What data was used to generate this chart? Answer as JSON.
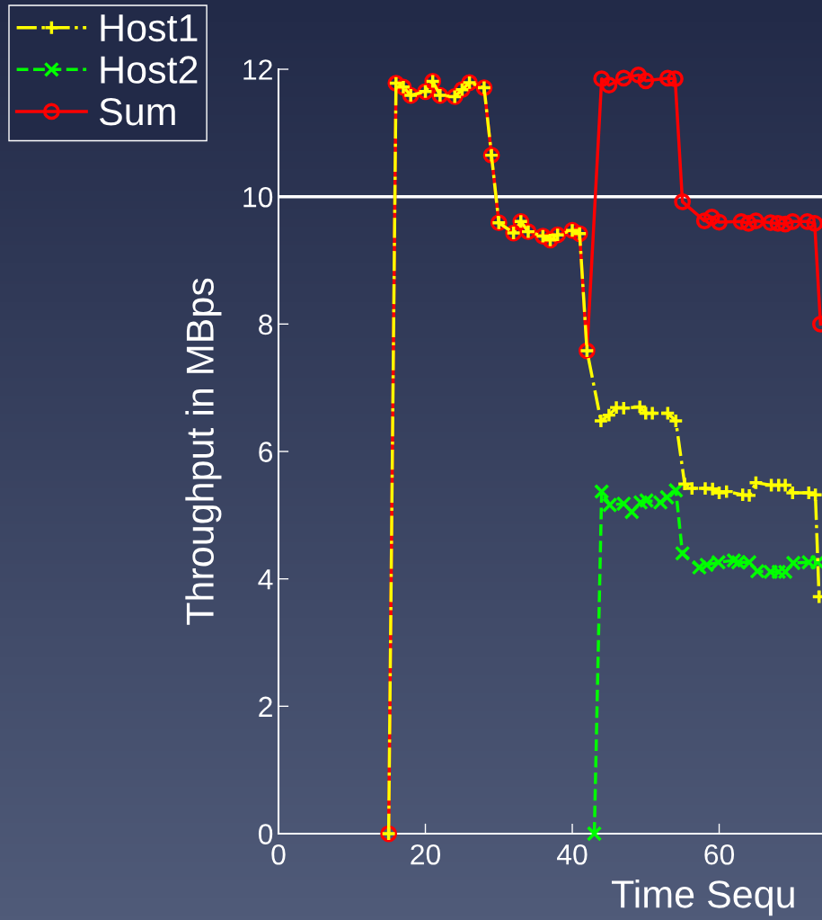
{
  "chart_data": {
    "type": "line",
    "ylabel": "Throughput in MBps",
    "xlabel": "Time Sequ",
    "xlim": [
      0,
      74
    ],
    "ylim": [
      0,
      12
    ],
    "xticks": [
      0,
      20,
      40,
      60
    ],
    "yticks": [
      0,
      2,
      4,
      6,
      8,
      10,
      12
    ],
    "grid": false,
    "legend": "top left",
    "ref_lines": [
      {
        "axis": "y",
        "value": 10,
        "color": "#ffffff",
        "line_style": "solid"
      }
    ],
    "series": [
      {
        "name": "Host1",
        "color": "#ffff00",
        "marker": "plus",
        "line_style": "dashdot",
        "x": [
          15,
          16,
          17,
          18,
          20,
          21,
          22,
          24,
          25,
          26,
          28,
          29,
          30,
          32,
          33,
          34,
          36,
          37,
          38,
          40,
          41,
          42,
          43.9,
          45,
          46,
          47,
          49.2,
          50,
          50.9,
          53,
          54.1,
          55.3,
          56.3,
          58.1,
          59.1,
          60,
          61,
          63.2,
          64.1,
          65,
          67.1,
          68.1,
          69,
          70,
          72.2,
          73.1,
          73.6
        ],
        "values": [
          0,
          11.78,
          11.72,
          11.59,
          11.65,
          11.81,
          11.59,
          11.57,
          11.68,
          11.79,
          11.71,
          10.65,
          9.59,
          9.43,
          9.61,
          9.45,
          9.38,
          9.32,
          9.4,
          9.47,
          9.42,
          7.58,
          6.48,
          6.57,
          6.69,
          6.68,
          6.7,
          6.6,
          6.6,
          6.6,
          6.48,
          5.49,
          5.42,
          5.42,
          5.41,
          5.35,
          5.37,
          5.32,
          5.31,
          5.51,
          5.47,
          5.47,
          5.47,
          5.35,
          5.35,
          5.32,
          3.72
        ]
      },
      {
        "name": "Host2",
        "color": "#00ff00",
        "marker": "cross",
        "line_style": "dashed",
        "x": [
          43,
          44,
          45.1,
          47,
          48.1,
          49.3,
          50.1,
          52,
          52.9,
          54.1,
          55,
          57.3,
          58.3,
          59.9,
          62,
          62.6,
          64.1,
          65.2,
          67,
          68.1,
          69,
          70.1,
          72.2,
          73.4
        ],
        "values": [
          0,
          5.37,
          5.16,
          5.18,
          5.05,
          5.2,
          5.23,
          5.2,
          5.28,
          5.39,
          4.4,
          4.18,
          4.22,
          4.26,
          4.29,
          4.26,
          4.26,
          4.12,
          4.11,
          4.11,
          4.11,
          4.25,
          4.26,
          4.26
        ]
      },
      {
        "name": "Sum",
        "color": "#ff0000",
        "marker": "circle",
        "line_style": "solid",
        "x": [
          15,
          16,
          17,
          18,
          20,
          21,
          22,
          24,
          25,
          26,
          28,
          29,
          30,
          32,
          33,
          34,
          36,
          37,
          38,
          40,
          41,
          42,
          44,
          45,
          47,
          49,
          50,
          53,
          54,
          55,
          58,
          59,
          60,
          63,
          64,
          65,
          67,
          68,
          69,
          70,
          72,
          73,
          73.8
        ],
        "values": [
          0,
          11.78,
          11.72,
          11.59,
          11.65,
          11.81,
          11.59,
          11.57,
          11.68,
          11.79,
          11.71,
          10.65,
          9.59,
          9.43,
          9.61,
          9.45,
          9.38,
          9.32,
          9.4,
          9.47,
          9.42,
          7.58,
          11.85,
          11.75,
          11.86,
          11.91,
          11.82,
          11.86,
          11.85,
          9.92,
          9.62,
          9.68,
          9.6,
          9.61,
          9.58,
          9.62,
          9.59,
          9.58,
          9.57,
          9.61,
          9.61,
          9.58,
          8.0
        ]
      }
    ]
  }
}
